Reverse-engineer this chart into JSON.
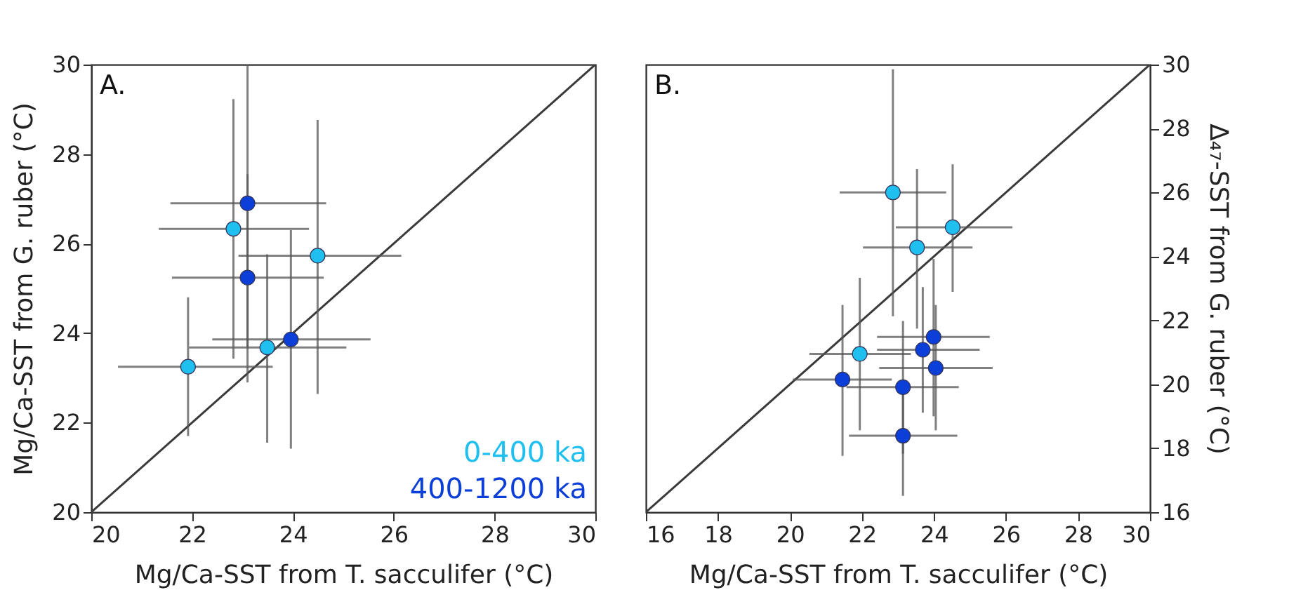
{
  "chart_data": [
    {
      "type": "scatter",
      "annotations": [
        "A."
      ],
      "xlabel": "Mg/Ca-SST from T. sacculifer (°C)",
      "ylabel": "Mg/Ca-SST from G. ruber (°C)",
      "xlim": [
        20,
        30
      ],
      "xticks": [
        20,
        22,
        24,
        26,
        28,
        30
      ],
      "ylim": [
        20,
        30
      ],
      "yticks": [
        20,
        22,
        24,
        26,
        28,
        30
      ],
      "grid": false,
      "legend": "bottom right",
      "marker": "circle",
      "series": [
        {
          "type": "line",
          "marker": "none",
          "color": "#3a3a3a",
          "x": [
            20,
            30
          ],
          "values": [
            20,
            30
          ]
        },
        {
          "name": "0-400 ka",
          "color": "#1fbff0",
          "x": [
            21.92,
            22.82,
            24.49,
            23.49
          ],
          "values": [
            23.25,
            26.33,
            25.73,
            23.68
          ],
          "xerrors": [
            [
              20.53,
              23.6
            ],
            [
              21.34,
              24.32
            ],
            [
              22.92,
              26.15
            ],
            [
              21.94,
              25.06
            ]
          ],
          "errors": [
            [
              21.7,
              24.8
            ],
            [
              23.43,
              29.23
            ],
            [
              22.64,
              28.76
            ],
            [
              21.55,
              25.76
            ]
          ]
        },
        {
          "name": "400-1200 ka",
          "color": "#0b3fd8",
          "x": [
            23.1,
            23.1,
            23.96
          ],
          "values": [
            26.9,
            25.24,
            23.86
          ],
          "xerrors": [
            [
              21.57,
              24.66
            ],
            [
              21.6,
              24.61
            ],
            [
              22.4,
              25.54
            ]
          ],
          "errors": [
            [
              23.7,
              30
            ],
            [
              22.9,
              27.55
            ],
            [
              21.42,
              26.3
            ]
          ]
        }
      ]
    },
    {
      "type": "scatter",
      "annotations": [
        "B."
      ],
      "xlabel": "Mg/Ca-SST from T. sacculifer (°C)",
      "y2label": "Δ₄₇-SST from G. ruber (°C)",
      "xlim": [
        16,
        30
      ],
      "xticks": [
        16,
        18,
        20,
        22,
        24,
        26,
        28,
        30
      ],
      "y2lim": [
        16,
        30
      ],
      "y2ticks": [
        16,
        18,
        20,
        22,
        24,
        26,
        28,
        30
      ],
      "grid": false,
      "marker": "circle",
      "series": [
        {
          "type": "line",
          "marker": "none",
          "axis": "y2",
          "color": "#3a3a3a",
          "x": [
            16,
            30
          ],
          "values": [
            16,
            30
          ]
        },
        {
          "axis": "y2",
          "color": "#1fbff0",
          "x": [
            22.86,
            24.52,
            23.53,
            21.94
          ],
          "values": [
            26.0,
            24.91,
            24.28,
            20.95
          ],
          "xerrors": [
            [
              21.38,
              24.34
            ],
            [
              22.94,
              26.18
            ],
            [
              22.03,
              25.07
            ],
            [
              20.54,
              23.36
            ]
          ],
          "errors": [
            [
              22.13,
              29.85
            ],
            [
              22.89,
              26.88
            ],
            [
              21.74,
              26.73
            ],
            [
              18.56,
              23.33
            ]
          ]
        },
        {
          "axis": "y2",
          "color": "#0b3fd8",
          "x": [
            21.46,
            23.14,
            23.14,
            23.69,
            23.99,
            24.05
          ],
          "values": [
            20.15,
            19.91,
            18.39,
            21.08,
            21.48,
            20.51
          ],
          "xerrors": [
            [
              20.08,
              22.83
            ],
            [
              21.57,
              24.69
            ],
            [
              21.64,
              24.65
            ],
            [
              22.42,
              25.27
            ],
            [
              22.42,
              25.55
            ],
            [
              22.48,
              25.63
            ]
          ],
          "errors": [
            [
              17.76,
              22.48
            ],
            [
              17.83,
              21.98
            ],
            [
              16.51,
              20.1
            ],
            [
              19.11,
              23.04
            ],
            [
              19.0,
              23.92
            ],
            [
              18.56,
              22.48
            ]
          ]
        }
      ]
    }
  ]
}
